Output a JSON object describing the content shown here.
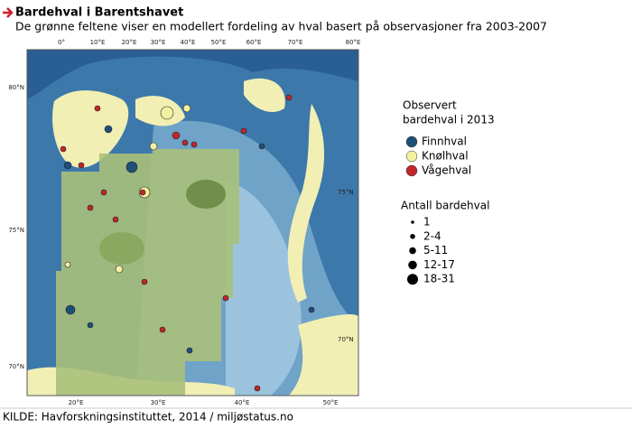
{
  "header": {
    "title": "Bardehval i Barentshavet",
    "subtitle": "De grønne feltene viser en modellert fordeling av hval basert på observasjoner fra 2003-2007"
  },
  "map": {
    "top_labels": [
      "0°",
      "10°E",
      "20°E",
      "30°E",
      "40°E",
      "50°E",
      "60°E",
      "70°E",
      "80°E"
    ],
    "left_labels": [
      "80°N",
      "75°N",
      "70°N"
    ],
    "right_labels": [
      "75°N",
      "70°N"
    ],
    "bottom_labels": [
      "20°E",
      "30°E",
      "40°E",
      "50°E"
    ]
  },
  "legend": {
    "title_lines": [
      "Observert",
      "bardehval i 2013"
    ],
    "species": [
      {
        "label": "Finnhval",
        "color": "#1f4e79"
      },
      {
        "label": "Knølhval",
        "color": "#f3f0a0"
      },
      {
        "label": "Vågehval",
        "color": "#c0262c"
      }
    ],
    "size_title": "Antall bardehval",
    "sizes": [
      "1",
      "2-4",
      "5-11",
      "12-17",
      "18-31"
    ]
  },
  "source": "KILDE: Havforskningsinstituttet, 2014 / miljøstatus.no"
}
